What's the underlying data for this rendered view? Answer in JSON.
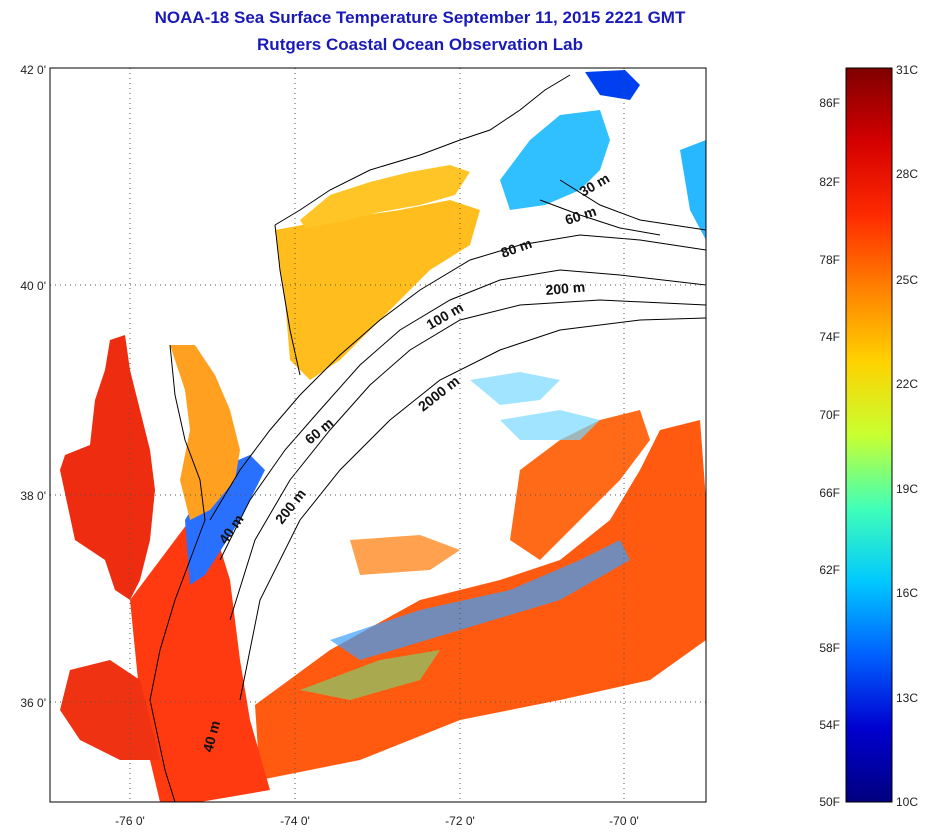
{
  "title": {
    "line1": "NOAA-18 Sea Surface Temperature September 11, 2015 2221 GMT",
    "line2": "Rutgers Coastal Ocean Observation Lab"
  },
  "map": {
    "lat_ticks": [
      "42 0'",
      "40 0'",
      "38 0'",
      "36 0'"
    ],
    "lon_ticks": [
      "-76 0'",
      "-74 0'",
      "-72 0'",
      "-70 0'"
    ],
    "contour_labels": [
      "30 m",
      "60 m",
      "80 m",
      "200 m",
      "100 m",
      "2000 m",
      "60 m",
      "200 m",
      "40 m",
      "40 m"
    ]
  },
  "colorbar": {
    "f_labels": [
      "86F",
      "82F",
      "78F",
      "74F",
      "70F",
      "66F",
      "62F",
      "58F",
      "54F",
      "50F"
    ],
    "c_labels": [
      "31C",
      "28C",
      "25C",
      "22C",
      "19C",
      "16C",
      "13C",
      "10C"
    ],
    "colors": [
      "#7f0000",
      "#d40000",
      "#ff2a00",
      "#ff8000",
      "#ffd200",
      "#c8ff30",
      "#40ffb8",
      "#00c8ff",
      "#0060ff",
      "#0000d0",
      "#00007f"
    ]
  }
}
